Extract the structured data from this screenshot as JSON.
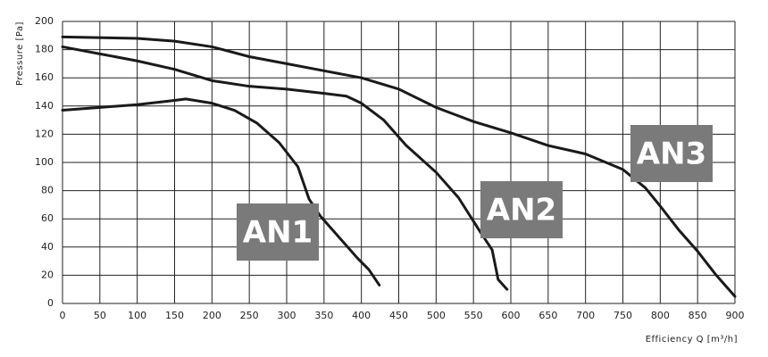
{
  "chart_data": {
    "type": "line",
    "x_label": "Efficiency Q [m³/h]",
    "y_label": "Pressure [Pa]",
    "xlim": [
      0,
      900
    ],
    "ylim": [
      0,
      200
    ],
    "xticks": [
      0,
      50,
      100,
      150,
      200,
      250,
      300,
      350,
      400,
      450,
      500,
      550,
      600,
      650,
      700,
      750,
      800,
      850,
      900
    ],
    "yticks": [
      0,
      20,
      40,
      60,
      80,
      100,
      120,
      140,
      160,
      180,
      200
    ],
    "grid": true,
    "series": [
      {
        "name": "AN1",
        "color": "#1a1a1a",
        "x": [
          0,
          50,
          100,
          150,
          165,
          200,
          230,
          260,
          290,
          315,
          330,
          345,
          370,
          395,
          410,
          424
        ],
        "values": [
          137,
          139,
          141,
          144,
          145,
          142,
          137,
          128,
          114,
          97,
          74,
          62,
          47,
          32,
          24,
          13
        ]
      },
      {
        "name": "AN2",
        "color": "#1a1a1a",
        "x": [
          0,
          50,
          100,
          150,
          200,
          250,
          300,
          350,
          380,
          400,
          430,
          460,
          500,
          530,
          560,
          575,
          580,
          583,
          595
        ],
        "values": [
          182,
          177,
          172,
          166,
          158,
          154,
          152,
          149,
          147,
          142,
          130,
          112,
          93,
          75,
          50,
          38,
          25,
          17,
          10
        ]
      },
      {
        "name": "AN3",
        "color": "#1a1a1a",
        "x": [
          0,
          100,
          150,
          200,
          250,
          300,
          350,
          400,
          450,
          500,
          550,
          600,
          650,
          700,
          750,
          780,
          800,
          825,
          850,
          875,
          900
        ],
        "values": [
          189,
          188,
          186,
          182,
          175,
          170,
          165,
          160,
          152,
          139,
          129,
          121,
          112,
          106,
          95,
          82,
          69,
          52,
          37,
          20,
          5
        ]
      }
    ]
  }
}
